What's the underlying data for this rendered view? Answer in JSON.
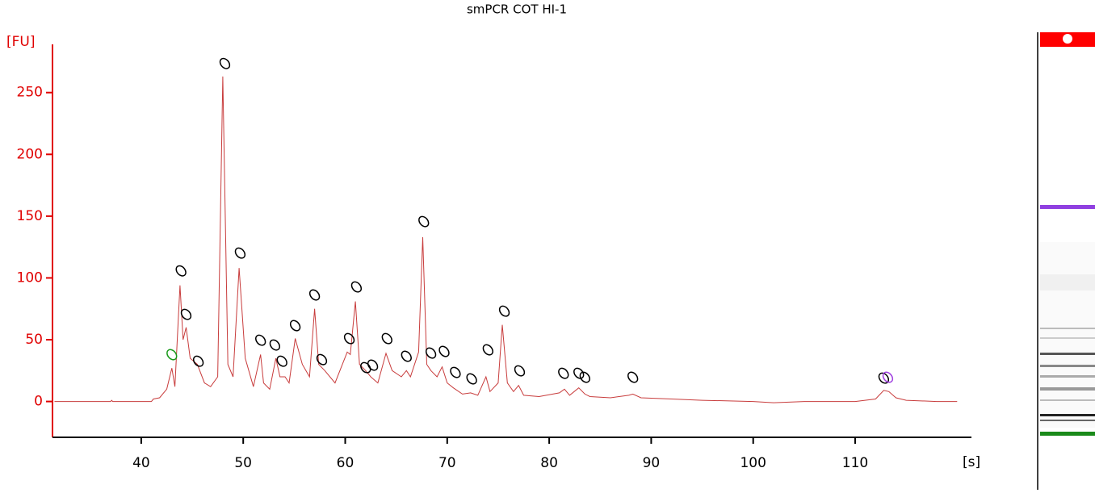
{
  "chart_data": {
    "type": "line",
    "title": "smPCR COT HI-1",
    "y_label": "[FU]",
    "x_label": "[s]",
    "xlim": [
      31.3,
      121.4
    ],
    "ylim": [
      -29,
      289
    ],
    "xticks": [
      40,
      50,
      60,
      70,
      80,
      90,
      100,
      110
    ],
    "yticks": [
      0,
      50,
      100,
      150,
      200,
      250
    ],
    "axis_color": "#e00000",
    "line_color": "#c83c3c",
    "x": [
      31.5,
      37,
      37.1,
      37.2,
      41,
      41.2,
      41.8,
      42.5,
      43,
      43.3,
      43.8,
      44.1,
      44.4,
      44.8,
      45.5,
      46.2,
      46.8,
      47.5,
      48,
      48.5,
      49,
      49.6,
      50.2,
      51,
      51.7,
      52,
      52.6,
      53.2,
      53.6,
      54.1,
      54.5,
      55.1,
      55.8,
      56.5,
      57,
      57.4,
      58,
      59,
      60.2,
      60.5,
      61,
      61.4,
      62,
      62.5,
      63.2,
      64,
      64.6,
      65.5,
      66,
      66.4,
      67.2,
      67.6,
      68,
      68.4,
      69,
      69.5,
      70,
      70.6,
      71.5,
      72.3,
      73,
      73.8,
      74.2,
      75,
      75.4,
      75.9,
      76.5,
      77,
      77.5,
      79,
      81,
      81.5,
      82,
      82.9,
      83.5,
      84,
      86,
      87.8,
      88.2,
      89,
      92,
      95,
      100,
      102,
      105,
      110,
      112,
      112.8,
      113.3,
      114,
      115,
      118,
      120
    ],
    "values": [
      0,
      0,
      1,
      0,
      0,
      2,
      3,
      10,
      27,
      12,
      94,
      50,
      60,
      35,
      30,
      15,
      12,
      20,
      263,
      30,
      20,
      108,
      35,
      12,
      38,
      15,
      10,
      35,
      20,
      20,
      15,
      51,
      30,
      20,
      75,
      30,
      25,
      15,
      40,
      38,
      81,
      30,
      25,
      20,
      15,
      39,
      25,
      20,
      25,
      20,
      40,
      133,
      30,
      25,
      20,
      28,
      15,
      11,
      6,
      7,
      5,
      20,
      8,
      15,
      62,
      15,
      8,
      13,
      5,
      4,
      7,
      10,
      5,
      11,
      6,
      4,
      3,
      5,
      6,
      3,
      2,
      1,
      0,
      -1,
      0,
      0,
      2,
      9,
      8,
      3,
      1,
      0,
      0
    ],
    "peaks": {
      "x": [
        43.0,
        43.9,
        44.4,
        45.6,
        48.2,
        49.7,
        51.7,
        53.1,
        53.8,
        55.1,
        57.0,
        57.7,
        60.4,
        61.1,
        62.0,
        62.7,
        64.1,
        66.0,
        67.7,
        68.4,
        69.7,
        70.8,
        72.4,
        74.0,
        75.6,
        77.1,
        81.4,
        82.9,
        83.5,
        88.2,
        112.8,
        113.2
      ],
      "values": [
        37.9,
        105.7,
        70.5,
        32.6,
        273.5,
        120.1,
        49.6,
        45.7,
        32.6,
        61.4,
        86.2,
        33.9,
        50.9,
        92.7,
        27.4,
        29.4,
        50.9,
        36.6,
        145.6,
        39.2,
        40.5,
        23.5,
        18.3,
        41.8,
        73.1,
        24.8,
        22.8,
        22.8,
        19.6,
        19.6,
        18.9,
        19.6
      ],
      "colors": [
        "#1a9a1a",
        "#000",
        "#000",
        "#000",
        "#000",
        "#000",
        "#000",
        "#000",
        "#000",
        "#000",
        "#000",
        "#000",
        "#000",
        "#000",
        "#000",
        "#000",
        "#000",
        "#000",
        "#000",
        "#000",
        "#000",
        "#000",
        "#000",
        "#000",
        "#000",
        "#000",
        "#000",
        "#000",
        "#000",
        "#000",
        "#000",
        "#a040e0"
      ]
    }
  }
}
